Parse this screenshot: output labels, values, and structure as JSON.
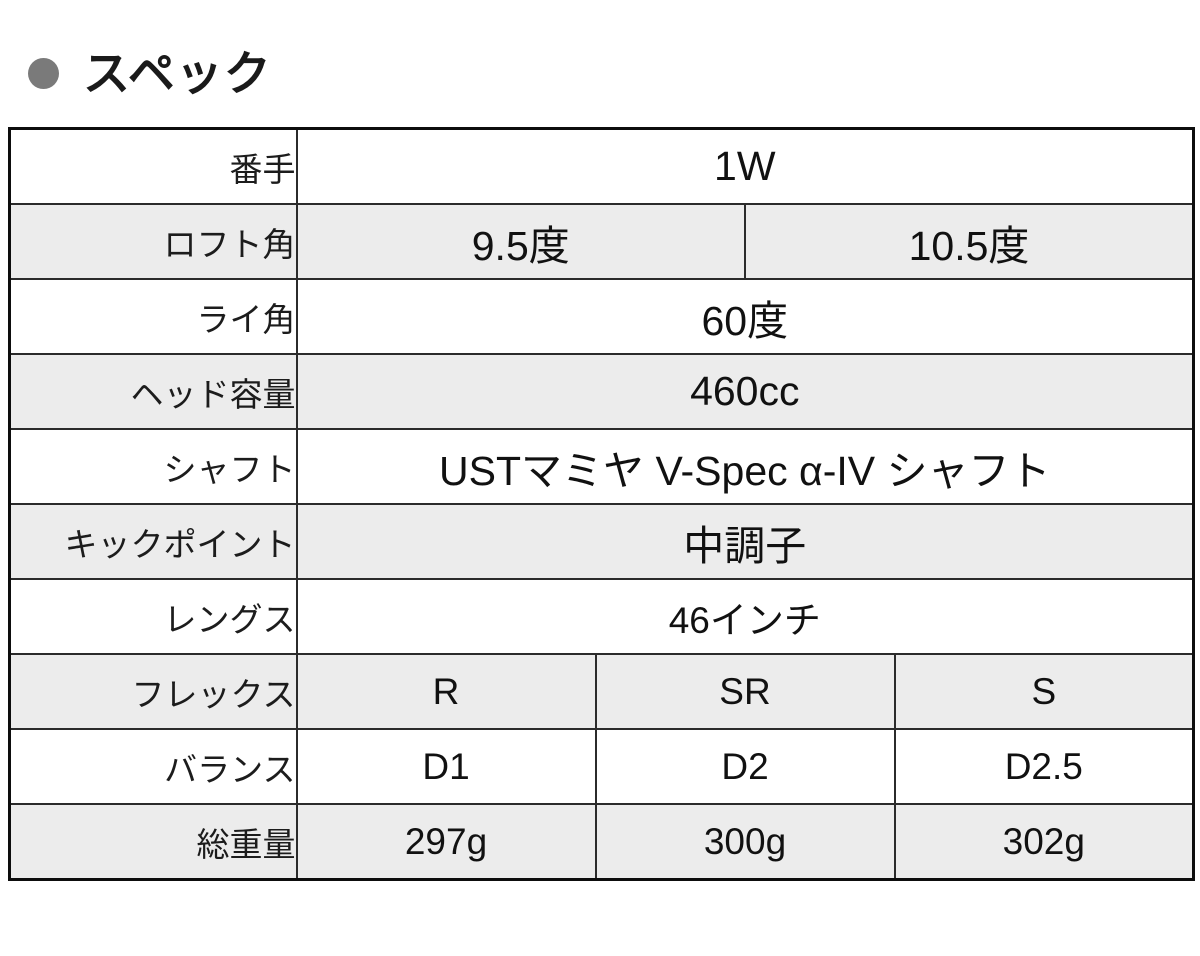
{
  "page": {
    "title": "スペック"
  },
  "colors": {
    "bullet": "#7a7a7a",
    "row_shade": "#ececec",
    "table_border": "#0d0d0d"
  },
  "icons": {
    "bullet": "circle-bullet-icon"
  },
  "table": {
    "rows": [
      {
        "label": "番手",
        "values": [
          "1W"
        ]
      },
      {
        "label": "ロフト角",
        "values": [
          "9.5度",
          "10.5度"
        ]
      },
      {
        "label": "ライ角",
        "values": [
          "60度"
        ]
      },
      {
        "label": "ヘッド容量",
        "values": [
          "460cc"
        ]
      },
      {
        "label": "シャフト",
        "values": [
          "USTマミヤ V-Spec α-IV シャフト"
        ]
      },
      {
        "label": "キックポイント",
        "values": [
          "中調子"
        ]
      },
      {
        "label": "レングス",
        "values": [
          "46インチ"
        ]
      },
      {
        "label": "フレックス",
        "values": [
          "R",
          "SR",
          "S"
        ]
      },
      {
        "label": "バランス",
        "values": [
          "D1",
          "D2",
          "D2.5"
        ]
      },
      {
        "label": "総重量",
        "values": [
          "297g",
          "300g",
          "302g"
        ]
      }
    ]
  }
}
